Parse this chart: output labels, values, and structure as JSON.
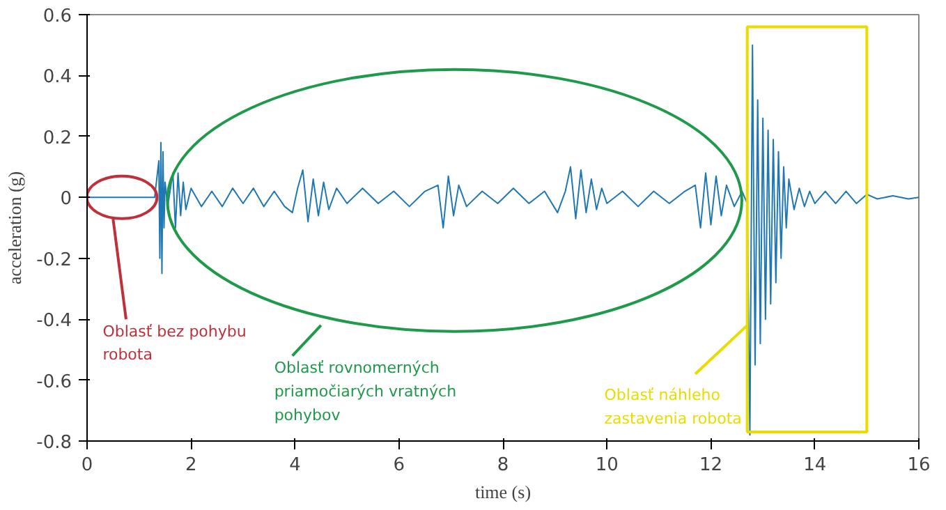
{
  "chart_data": {
    "type": "line",
    "xlabel": "time (s)",
    "ylabel": "acceleration (g)",
    "xlim": [
      0,
      16
    ],
    "ylim": [
      -0.8,
      0.6
    ],
    "xticks": [
      0,
      2,
      4,
      6,
      8,
      10,
      12,
      14,
      16
    ],
    "yticks": [
      -0.8,
      -0.6,
      -0.4,
      -0.2,
      0,
      0.2,
      0.4,
      0.6
    ],
    "grid": false,
    "series": [
      {
        "color": "#1f77b4",
        "x": [
          0,
          1.3,
          1.38,
          1.4,
          1.42,
          1.44,
          1.46,
          1.48,
          1.5,
          1.55,
          1.65,
          1.7,
          1.75,
          1.8,
          1.85,
          1.9,
          2.0,
          2.2,
          2.4,
          2.6,
          2.8,
          3.0,
          3.2,
          3.4,
          3.6,
          3.8,
          3.95,
          4.05,
          4.15,
          4.25,
          4.35,
          4.45,
          4.55,
          4.65,
          4.8,
          5.0,
          5.3,
          5.6,
          5.9,
          6.2,
          6.5,
          6.75,
          6.85,
          6.95,
          7.05,
          7.15,
          7.3,
          7.6,
          7.9,
          8.2,
          8.5,
          8.8,
          9.05,
          9.2,
          9.3,
          9.4,
          9.5,
          9.6,
          9.7,
          9.8,
          9.9,
          10.0,
          10.3,
          10.6,
          10.9,
          11.2,
          11.5,
          11.7,
          11.8,
          11.9,
          12.0,
          12.1,
          12.2,
          12.3,
          12.45,
          12.6,
          12.7,
          12.75,
          12.8,
          12.85,
          12.9,
          12.95,
          13.0,
          13.05,
          13.1,
          13.15,
          13.2,
          13.25,
          13.3,
          13.35,
          13.4,
          13.45,
          13.5,
          13.6,
          13.7,
          13.8,
          13.9,
          14.0,
          14.2,
          14.4,
          14.6,
          14.8,
          15.0,
          15.2,
          15.5,
          15.8,
          16
        ],
        "values": [
          0,
          0,
          0.12,
          -0.2,
          0.18,
          -0.25,
          0.15,
          -0.1,
          0.05,
          -0.03,
          0.08,
          -0.1,
          0.08,
          -0.06,
          0.05,
          -0.04,
          0.03,
          -0.03,
          0.02,
          -0.03,
          0.03,
          -0.02,
          0.03,
          -0.03,
          0.02,
          -0.03,
          -0.05,
          0.03,
          0.09,
          -0.08,
          0.06,
          -0.06,
          0.05,
          -0.04,
          0.03,
          -0.02,
          0.03,
          -0.02,
          0.02,
          -0.03,
          0.02,
          0.04,
          -0.1,
          0.07,
          -0.06,
          0.04,
          -0.03,
          0.02,
          -0.02,
          0.03,
          -0.02,
          0.02,
          -0.05,
          0.02,
          0.1,
          -0.07,
          0.09,
          -0.05,
          0.06,
          -0.04,
          0.03,
          -0.02,
          0.02,
          -0.03,
          0.02,
          -0.02,
          0.02,
          0.04,
          -0.1,
          0.08,
          -0.09,
          0.07,
          -0.06,
          0.04,
          -0.03,
          0.02,
          -0.02,
          -0.78,
          0.5,
          -0.55,
          0.32,
          -0.48,
          0.26,
          -0.4,
          0.22,
          -0.35,
          0.19,
          -0.28,
          0.15,
          -0.2,
          0.1,
          -0.1,
          0.06,
          -0.04,
          0.03,
          -0.03,
          0.02,
          -0.02,
          0.02,
          -0.02,
          0.02,
          -0.02,
          0.01,
          -0.005,
          0.005,
          -0.005,
          0
        ]
      }
    ],
    "annotations": [
      "Oblasť bez pohybu\nrobota",
      "Oblasť rovnomerných\npriamočiarých vratných\npohybov",
      {
        "text": "Oblasť náhleho\nzastavenia robota",
        "x": 12.7,
        "y": -0.42
      }
    ]
  }
}
